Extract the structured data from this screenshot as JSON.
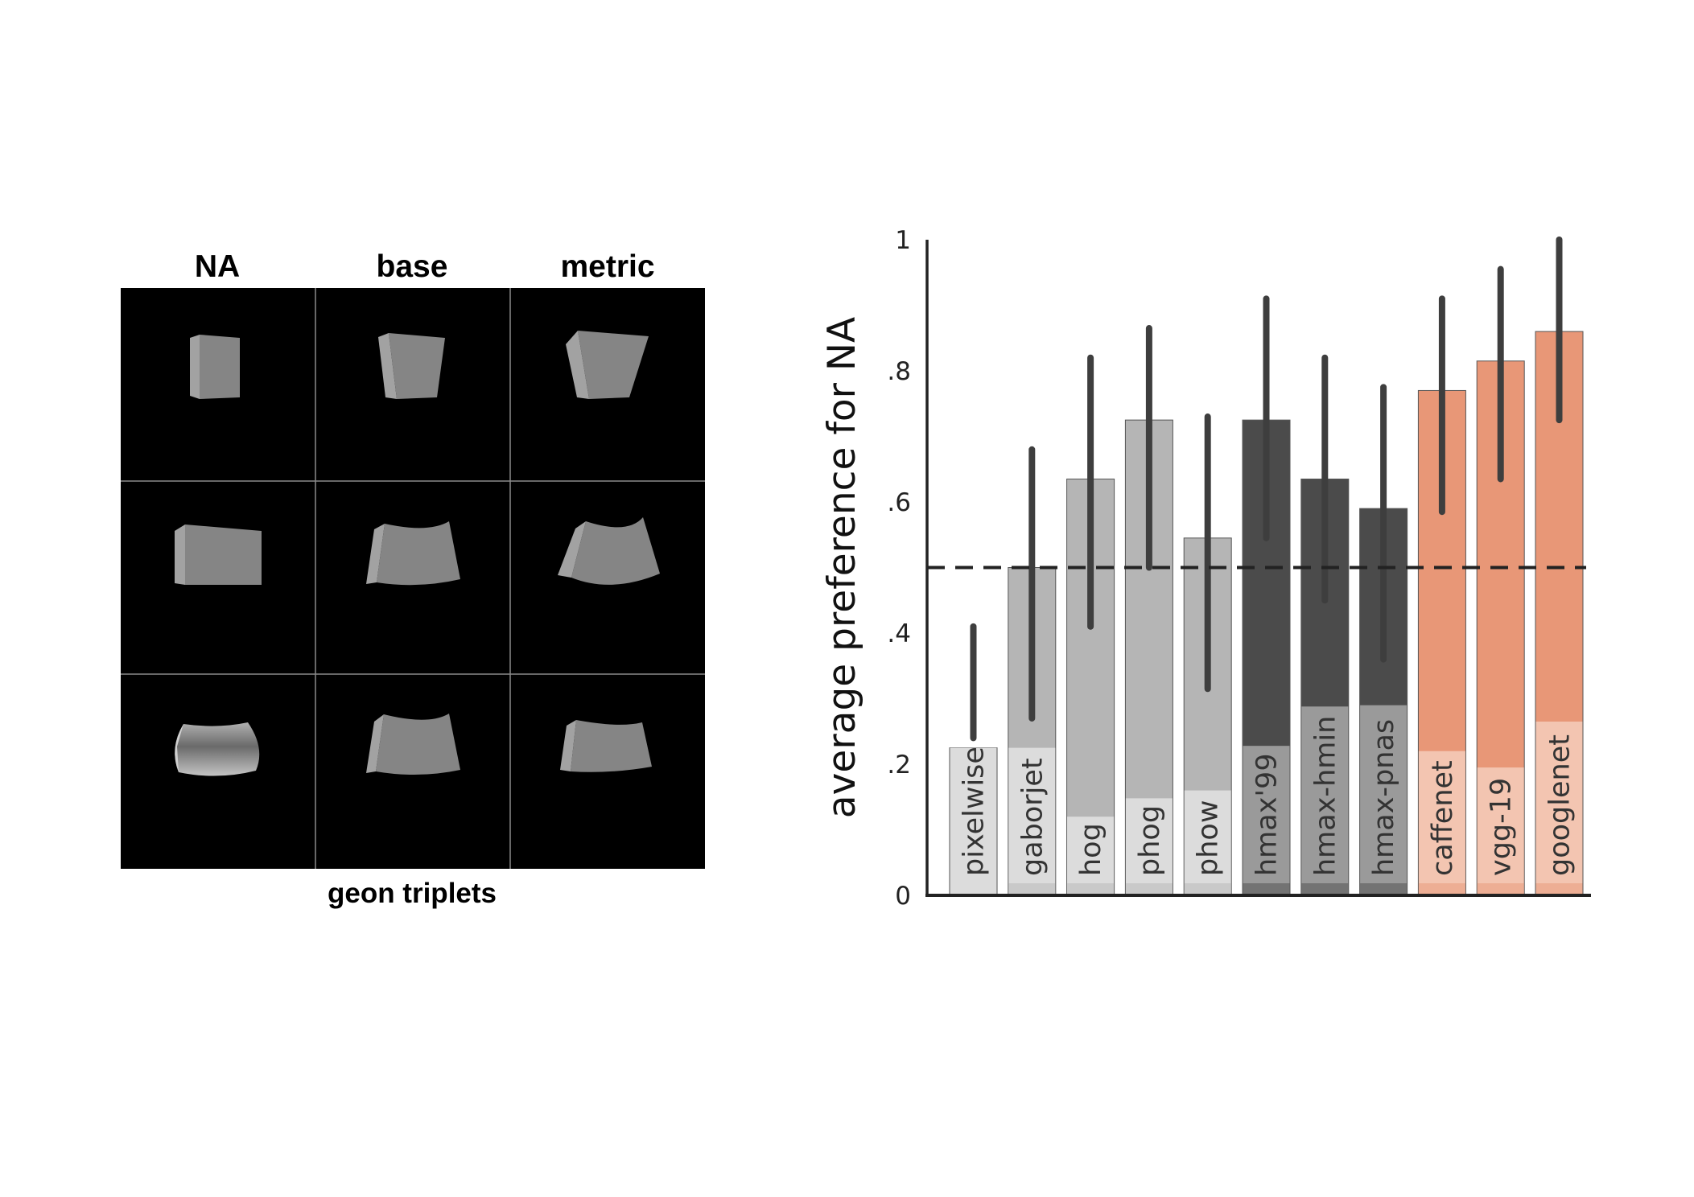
{
  "geon_panel": {
    "column_titles": [
      "NA",
      "base",
      "metric"
    ],
    "caption": "geon triplets",
    "background_color": "#000000",
    "grid_line_color": "#8a8a8a",
    "shape_color": "#858585"
  },
  "chart_data": {
    "type": "bar",
    "categories": [
      "pixelwise",
      "gaborjet",
      "hog",
      "phog",
      "phow",
      "hmax'99",
      "hmax-hmin",
      "hmax-pnas",
      "caffenet",
      "vgg-19",
      "googlenet"
    ],
    "values": [
      0.225,
      0.5,
      0.635,
      0.725,
      0.545,
      0.725,
      0.635,
      0.59,
      0.77,
      0.815,
      0.86
    ],
    "error_low": [
      0.24,
      0.27,
      0.41,
      0.5,
      0.315,
      0.545,
      0.45,
      0.36,
      0.585,
      0.635,
      0.725
    ],
    "error_high": [
      0.41,
      0.68,
      0.82,
      0.865,
      0.73,
      0.91,
      0.82,
      0.775,
      0.91,
      0.955,
      1.0
    ],
    "inner_values": [
      0.225,
      0.225,
      0.12,
      0.148,
      0.16,
      0.228,
      0.288,
      0.29,
      0.22,
      0.195,
      0.265
    ],
    "bar_colors": [
      "#dcdcdc",
      "#b5b5b5",
      "#b5b5b5",
      "#b5b5b5",
      "#b5b5b5",
      "#4b4b4b",
      "#4b4b4b",
      "#4b4b4b",
      "#e89777",
      "#e89777",
      "#e89777"
    ],
    "inner_colors": [
      "#dcdcdc",
      "#dcdcdc",
      "#dcdcdc",
      "#dcdcdc",
      "#dcdcdc",
      "#9a9a9a",
      "#9a9a9a",
      "#9a9a9a",
      "#f3c5b1",
      "#f3c5b1",
      "#f3c5b1"
    ],
    "error_bar_color": "#3e3e3e",
    "chance_level": 0.5,
    "ylabel": "average preference for NA",
    "xlabel": "",
    "ylim": [
      0,
      1
    ],
    "yticks": [
      0,
      0.2,
      0.4,
      0.6,
      0.8,
      1
    ],
    "ytick_labels": [
      "0",
      ".2",
      ".4",
      ".6",
      ".8",
      "1"
    ],
    "grid": false
  }
}
